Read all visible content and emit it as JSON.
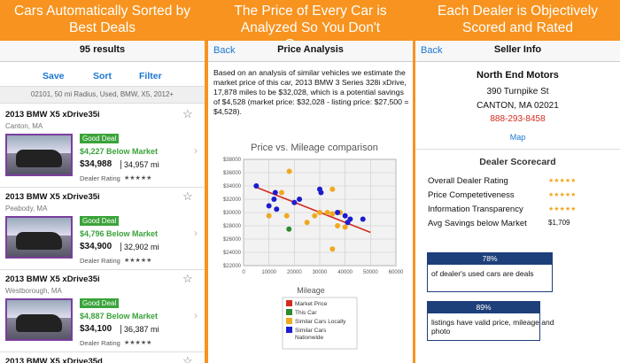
{
  "panels": [
    {
      "headline": "Cars Automatically Sorted by Best Deals",
      "nav_title": "95 results",
      "actions": [
        "Save",
        "Sort",
        "Filter"
      ],
      "filter": "02101, 50 mi Radius, Used, BMW, X5, 2012+",
      "listings": [
        {
          "title": "2013 BMW X5 xDrive35i",
          "location": "Canton, MA",
          "badge": "Good Deal",
          "savings": "$4,227 Below Market",
          "price": "$34,988",
          "mileage": "34,957 mi",
          "rating_label": "Dealer Rating",
          "rating": "★★★★★"
        },
        {
          "title": "2013 BMW X5 xDrive35i",
          "location": "Peabody, MA",
          "badge": "Good Deal",
          "savings": "$4,796 Below Market",
          "price": "$34,900",
          "mileage": "32,902 mi",
          "rating_label": "Dealer Rating",
          "rating": "★★★★★"
        },
        {
          "title": "2013 BMW X5 xDrive35i",
          "location": "Westborough, MA",
          "badge": "Good Deal",
          "savings": "$4,887 Below Market",
          "price": "$34,100",
          "mileage": "36,387 mi",
          "rating_label": "Dealer Rating",
          "rating": "★★★★★"
        },
        {
          "title": "2013 BMW X5 xDrive35d"
        }
      ]
    },
    {
      "headline": "The Price of Every Car is Analyzed So You Don't Overpay",
      "back": "Back",
      "nav_title": "Price Analysis",
      "summary": "Based on an analysis of similar vehicles we estimate the market price of this car, 2013 BMW 3 Series 328i xDrive, 17,878 miles to be $32,028, which is a potential savings of $4,528 (market price: $32,028 - listing price: $27,500 = $4,528).",
      "chart": {
        "type": "scatter",
        "title": "Price vs. Mileage comparison",
        "xlabel": "Mileage",
        "xlim": [
          0,
          60000
        ],
        "xticks": [
          0,
          10000,
          20000,
          30000,
          40000,
          50000,
          60000
        ],
        "ylim": [
          22000,
          38000
        ],
        "yticks": [
          {
            "value": 22000,
            "label": "$22000"
          },
          {
            "value": 24000,
            "label": "$24000"
          },
          {
            "value": 26000,
            "label": "$26000"
          },
          {
            "value": 28000,
            "label": "$28000"
          },
          {
            "value": 30000,
            "label": "$30000"
          },
          {
            "value": 32000,
            "label": "$32000"
          },
          {
            "value": 34000,
            "label": "$34000"
          },
          {
            "value": 36000,
            "label": "$36000"
          },
          {
            "value": 38000,
            "label": "$38000"
          }
        ],
        "grid": true,
        "series": [
          {
            "name": "Market Price",
            "color": "#d42a1e",
            "type": "line",
            "x": [
              5000,
              50000
            ],
            "y": [
              33800,
              27000
            ]
          },
          {
            "name": "This Car",
            "color": "#2e8b2e",
            "x": [
              17878
            ],
            "y": [
              27500
            ]
          },
          {
            "name": "Similar Cars Locally",
            "color": "#f0a81e",
            "x": [
              10000,
              15000,
              17000,
              18000,
              25000,
              28000,
              30000,
              33000,
              35000,
              35000,
              35000,
              37000,
              38000,
              40000
            ],
            "y": [
              29500,
              33000,
              29500,
              36200,
              28500,
              29500,
              30000,
              30000,
              29800,
              33500,
              24500,
              28000,
              30000,
              27800
            ]
          },
          {
            "name": "Similar Cars Nationwide",
            "color": "#1c1ccf",
            "x": [
              5000,
              10000,
              12000,
              12500,
              13000,
              20000,
              22000,
              30000,
              30500,
              37000,
              40000,
              41000,
              42000,
              47000
            ],
            "y": [
              34000,
              31000,
              32000,
              33000,
              30500,
              31500,
              32000,
              33500,
              33000,
              30000,
              29500,
              28500,
              29000,
              29000
            ]
          }
        ]
      }
    },
    {
      "headline": "Each Dealer is Objectively Scored and Rated",
      "back": "Back",
      "nav_title": "Seller Info",
      "dealer": {
        "name": "North End Motors",
        "street": "390 Turnpike St",
        "city": "CANTON, MA  02021",
        "phone": "888-293-8458",
        "map": "Map"
      },
      "scorecard_title": "Dealer Scorecard",
      "scores": [
        {
          "label": "Overall Dealer Rating",
          "value": "★★★★★"
        },
        {
          "label": "Price Competetiveness",
          "value": "★★★★★"
        },
        {
          "label": "Information Transparency",
          "value": "★★★★★"
        },
        {
          "label": "Avg Savings below Market",
          "value": "$1,709"
        }
      ],
      "stats": [
        {
          "value": "78%",
          "caption": "of dealer's used cars are deals"
        },
        {
          "value": "89%",
          "caption": "listings have valid price, mileage and photo"
        }
      ]
    }
  ]
}
